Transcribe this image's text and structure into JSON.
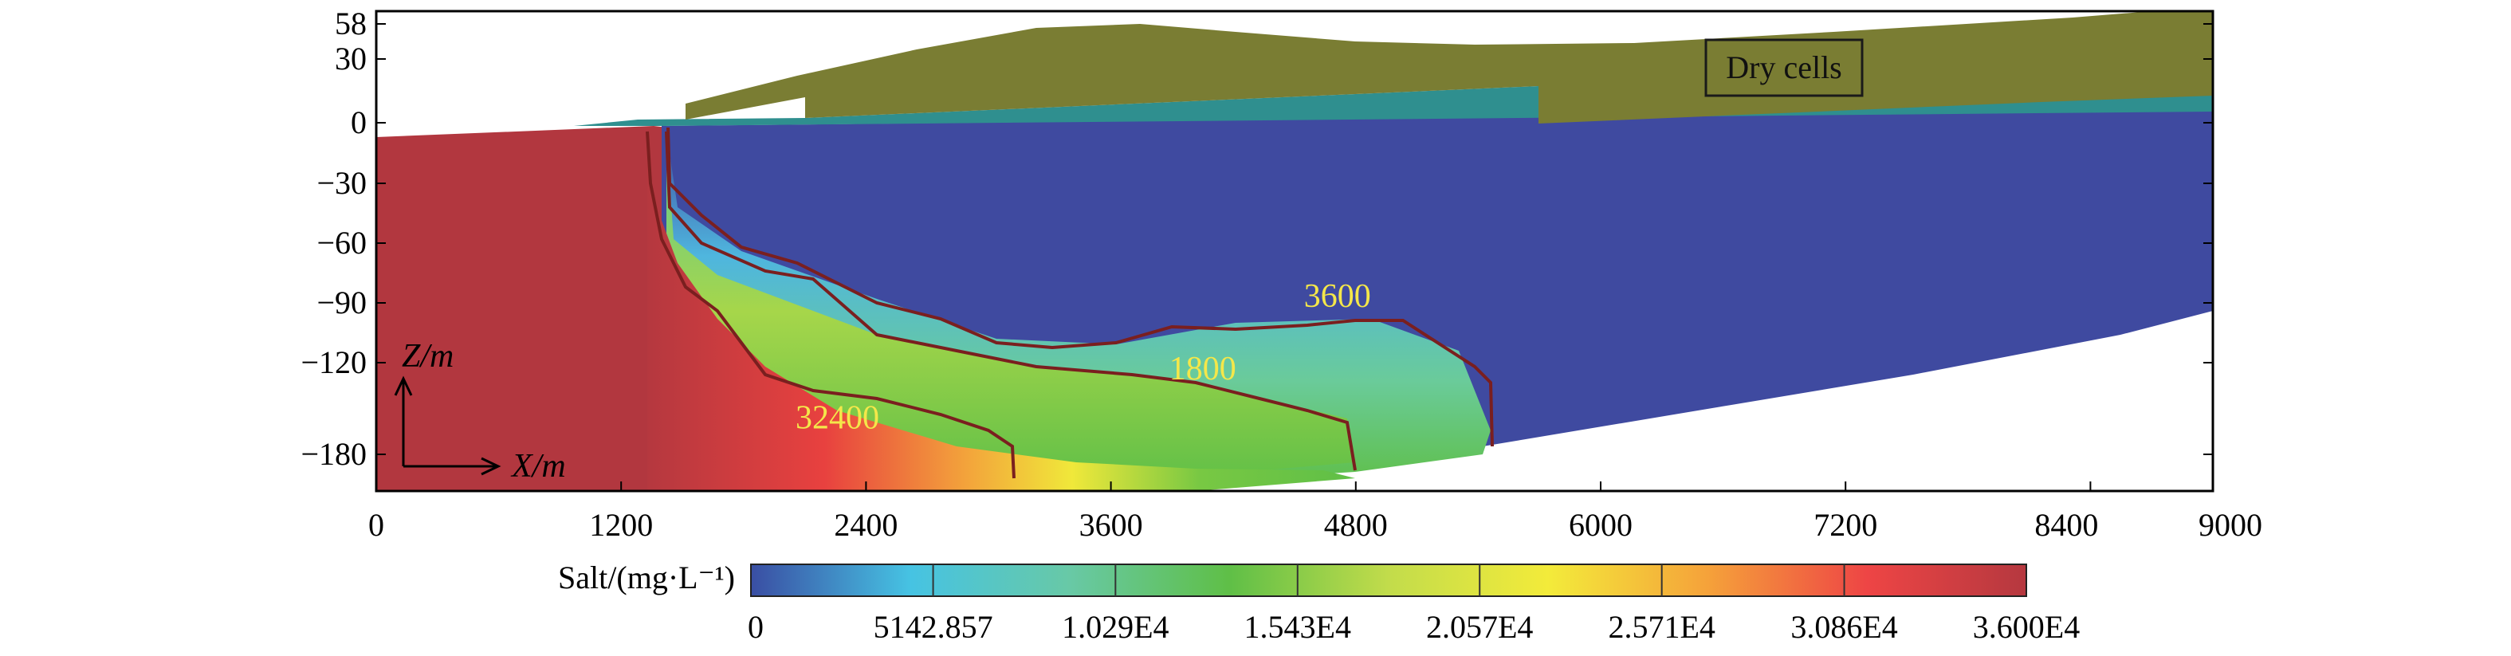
{
  "chart_data": {
    "type": "heatmap",
    "title": "",
    "xlabel": "X/m",
    "ylabel": "Z/m",
    "xlim": [
      0,
      9000
    ],
    "ylim": [
      -190,
      58
    ],
    "x_ticks": [
      0,
      1200,
      2400,
      3600,
      4800,
      6000,
      7200,
      8400,
      9000
    ],
    "y_ticks": [
      58,
      30,
      0,
      -30,
      -60,
      -90,
      -120,
      -180
    ],
    "annotations": {
      "dry_cells": "Dry cells"
    },
    "contours": [
      {
        "label": "3600",
        "level": 3600,
        "label_x": 4710,
        "label_y": -92
      },
      {
        "label": "1800",
        "level": 1800,
        "label_x": 4050,
        "label_y": -131
      },
      {
        "label": "32400",
        "level": 32400,
        "label_x": 2260,
        "label_y": -163
      }
    ],
    "colorbar": {
      "label": "Salt/(mg·L⁻¹)",
      "min": 0,
      "max": 36000,
      "tick_values": [
        0,
        5142.857,
        10290,
        15430,
        20570,
        25710,
        30860,
        36000
      ],
      "tick_labels": [
        "0",
        "5142.857",
        "1.029E4",
        "1.543E4",
        "2.057E4",
        "2.571E4",
        "3.086E4",
        "3.600E4"
      ],
      "colors": [
        "#3a4ea3",
        "#46c3e3",
        "#68c9a6",
        "#5fbf47",
        "#c2dc4b",
        "#f3eb3a",
        "#f5a23a",
        "#ee4545",
        "#b5383f"
      ]
    },
    "colors": {
      "fresh": "#3f4aa0",
      "saline": "#b2373f",
      "dry": "#7a7d33",
      "teal": "#2f8f8f",
      "contour": "#7a1f1f",
      "contour_label": "#f4e74a"
    }
  }
}
